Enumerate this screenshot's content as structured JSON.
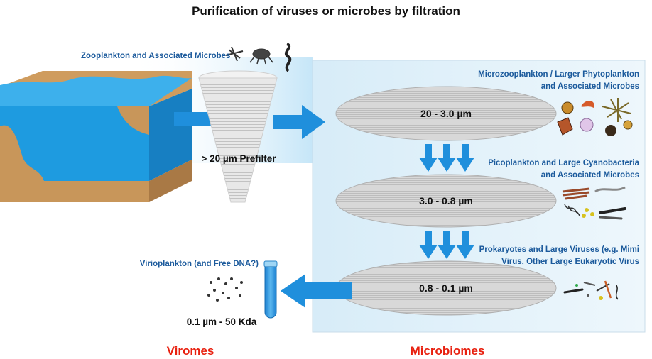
{
  "title": "Purification of viruses or microbes by filtration",
  "zooplankton_label": "Zooplankton and Associated Microbes",
  "prefilter_label": "> 20 µm Prefilter",
  "filters": [
    {
      "size": "20 - 3.0 µm",
      "label_line1": "Microzooplankton / Larger Phytoplankton",
      "label_line2": "and Associated Microbes"
    },
    {
      "size": "3.0 - 0.8 µm",
      "label_line1": "Picoplankton and Large Cyanobacteria",
      "label_line2": "and Associated Microbes"
    },
    {
      "size": "0.8 - 0.1 µm",
      "label_line1": "Prokaryotes and Large Viruses (e.g. Mimi",
      "label_line2": "Virus, Other Large Eukaryotic Virus"
    }
  ],
  "virioplankton_label": "Virioplankton (and Free DNA?)",
  "virome_size_label": "0.1 µm  - 50 Kda",
  "viromes_label": "Viromes",
  "microbiomes_label": "Microbiomes",
  "colors": {
    "water": "#1e9be0",
    "earth": "#c8965a",
    "arrow": "#1f8fdc",
    "panel": "#e6f3fb",
    "accent_text": "#1b5a9c",
    "red": "#e8200f"
  }
}
